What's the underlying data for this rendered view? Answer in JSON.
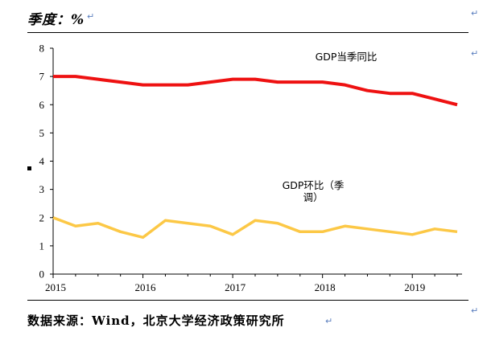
{
  "header": {
    "label": "季度：",
    "unit": "%"
  },
  "marks": {
    "return": "↵"
  },
  "source": {
    "text": "数据来源：Wind，北京大学经济政策研究所"
  },
  "chart_data": {
    "type": "line",
    "title": "",
    "xlabel": "",
    "ylabel": "%",
    "ylim": [
      0,
      8
    ],
    "xlim": [
      2015,
      2019.5
    ],
    "yticks": [
      0,
      1,
      2,
      3,
      4,
      5,
      6,
      7,
      8
    ],
    "xticks": [
      2015,
      2016,
      2017,
      2018,
      2019
    ],
    "colors": {
      "yoy": "#ee1111",
      "qoq": "#fcc846"
    },
    "series": [
      {
        "name": "GDP当季同比",
        "x": [
          2015.0,
          2015.25,
          2015.5,
          2015.75,
          2016.0,
          2016.25,
          2016.5,
          2016.75,
          2017.0,
          2017.25,
          2017.5,
          2017.75,
          2018.0,
          2018.25,
          2018.5,
          2018.75,
          2019.0,
          2019.25,
          2019.5
        ],
        "values": [
          7.0,
          7.0,
          6.9,
          6.8,
          6.7,
          6.7,
          6.7,
          6.8,
          6.9,
          6.9,
          6.8,
          6.8,
          6.8,
          6.7,
          6.5,
          6.4,
          6.4,
          6.2,
          6.0
        ]
      },
      {
        "name": "GDP环比（季调）",
        "x": [
          2015.0,
          2015.25,
          2015.5,
          2015.75,
          2016.0,
          2016.25,
          2016.5,
          2016.75,
          2017.0,
          2017.25,
          2017.5,
          2017.75,
          2018.0,
          2018.25,
          2018.5,
          2018.75,
          2019.0,
          2019.25,
          2019.5
        ],
        "values": [
          2.0,
          1.7,
          1.8,
          1.5,
          1.3,
          1.9,
          1.8,
          1.7,
          1.4,
          1.9,
          1.8,
          1.5,
          1.5,
          1.7,
          1.6,
          1.5,
          1.4,
          1.6,
          1.5
        ]
      }
    ],
    "annotations": [
      {
        "series": "GDP当季同比",
        "lines": [
          "GDP当季同比"
        ]
      },
      {
        "series": "GDP环比（季调）",
        "lines": [
          "GDP环比（季",
          "调）"
        ]
      }
    ]
  }
}
